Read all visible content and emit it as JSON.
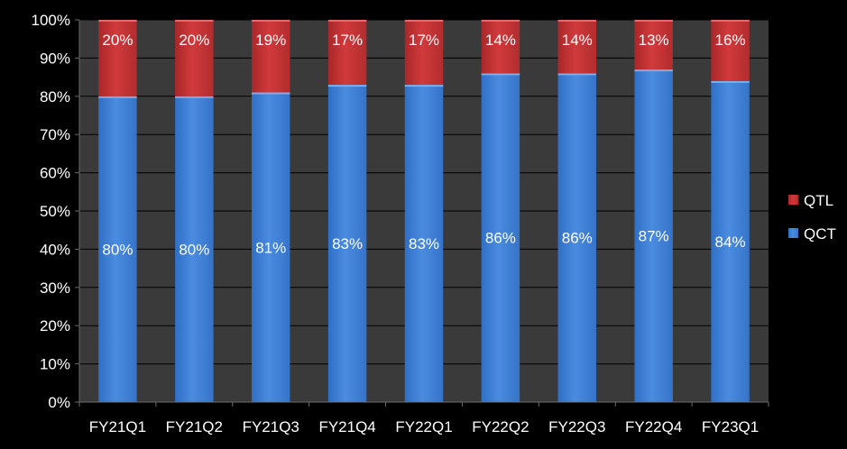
{
  "chart_data": {
    "type": "bar",
    "stacked": true,
    "percent_stacked": true,
    "categories": [
      "FY21Q1",
      "FY21Q2",
      "FY21Q3",
      "FY21Q4",
      "FY22Q1",
      "FY22Q2",
      "FY22Q3",
      "FY22Q4",
      "FY23Q1"
    ],
    "series": [
      {
        "name": "QCT",
        "values": [
          80,
          80,
          81,
          83,
          83,
          86,
          86,
          87,
          84
        ],
        "labels": [
          "80%",
          "80%",
          "81%",
          "83%",
          "83%",
          "86%",
          "86%",
          "87%",
          "84%"
        ],
        "color": "#3f7fd4"
      },
      {
        "name": "QTL",
        "values": [
          20,
          20,
          19,
          17,
          17,
          14,
          14,
          13,
          16
        ],
        "labels": [
          "20%",
          "20%",
          "19%",
          "17%",
          "17%",
          "14%",
          "14%",
          "13%",
          "16%"
        ],
        "color": "#c63234"
      }
    ],
    "y_ticks": [
      "0%",
      "10%",
      "20%",
      "30%",
      "40%",
      "50%",
      "60%",
      "70%",
      "80%",
      "90%",
      "100%"
    ],
    "ylim": [
      0,
      100
    ],
    "grid": true,
    "legend_position": "right",
    "legend_order": [
      "QTL",
      "QCT"
    ],
    "colors": {
      "background": "#000000",
      "plot_area": "#3a3a3a",
      "grid": "#000000",
      "text": "#ffffff",
      "data_label": "#ffffff"
    }
  }
}
